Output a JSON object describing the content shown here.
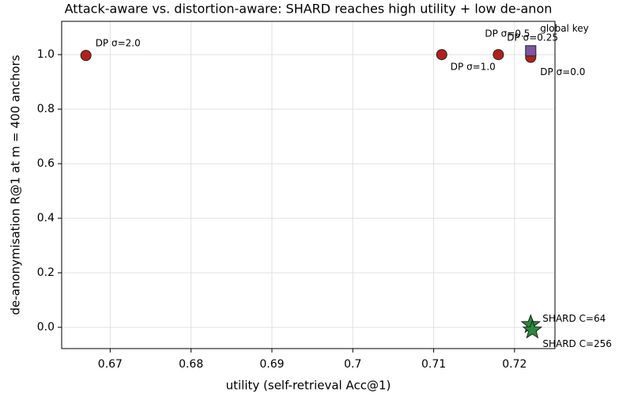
{
  "chart_data": {
    "type": "scatter",
    "title": "Attack-aware vs. distortion-aware: SHARD reaches high utility + low de-anon",
    "xlabel": "utility (self-retrieval Acc@1)",
    "ylabel": "de-anonymisation R@1 at m = 400 anchors",
    "xlim": [
      0.664,
      0.725
    ],
    "ylim": [
      -0.078,
      1.122
    ],
    "xticks": [
      0.67,
      0.68,
      0.69,
      0.7,
      0.71,
      0.72
    ],
    "yticks": [
      {
        "value": 0,
        "label": "0.0"
      },
      0.2,
      0.4,
      0.6,
      0.8,
      {
        "value": 1,
        "label": "1.0"
      }
    ],
    "grid": true,
    "series": [
      {
        "color": "#b2211c",
        "marker": "circle",
        "labels": [
          "DP σ=2.0",
          "DP σ=1.0",
          "DP σ=0.5",
          "DP σ=0.25",
          "DP σ=0.0"
        ],
        "x": [
          0.667,
          0.711,
          0.718,
          0.722,
          0.722
        ],
        "values": [
          0.997,
          1.0,
          1.0,
          1.0,
          0.99
        ]
      },
      {
        "color": "#7d55a0",
        "marker": "square",
        "labels": [
          "global key"
        ],
        "x": [
          0.722
        ],
        "values": [
          1.014
        ]
      },
      {
        "color": "#2a8a3a",
        "marker": "star",
        "labels": [
          "SHARD C=64",
          "SHARD C=256"
        ],
        "x": [
          0.722,
          0.7222
        ],
        "values": [
          0.01,
          -0.01
        ]
      }
    ]
  }
}
